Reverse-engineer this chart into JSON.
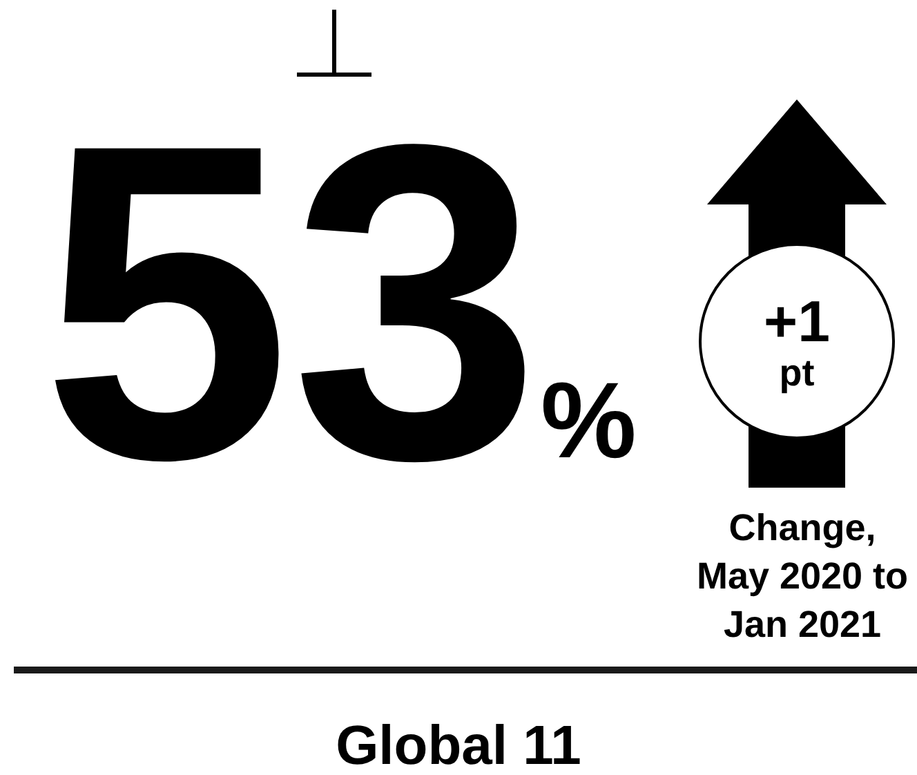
{
  "chart_data": {
    "type": "other",
    "title": "Global 11",
    "values": [
      53,
      1
    ],
    "value_labels": [
      "53%",
      "+1 pt"
    ],
    "annotations": [
      "Change, May 2020 to Jan 2021"
    ]
  }
}
